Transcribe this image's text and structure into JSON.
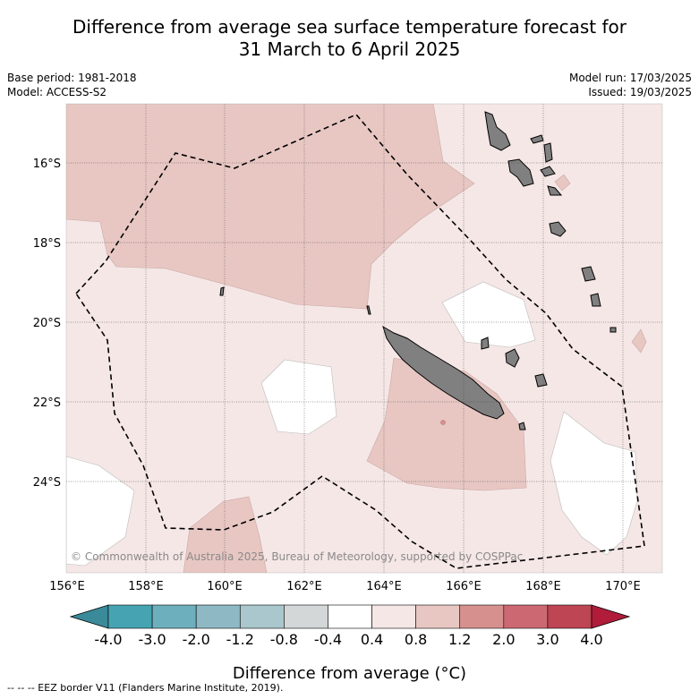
{
  "header": {
    "title_line1": "Difference from average sea surface temperature forecast for",
    "title_line2": "31 March to 6 April 2025",
    "base_period": "Base period: 1981-2018",
    "model": "Model: ACCESS-S2",
    "model_run": "Model run: 17/03/2025",
    "issued": "Issued: 19/03/2025"
  },
  "map": {
    "lat_labels": [
      "16°S",
      "18°S",
      "20°S",
      "22°S",
      "24°S"
    ],
    "lon_labels": [
      "156°E",
      "158°E",
      "160°E",
      "162°E",
      "164°E",
      "166°E",
      "168°E",
      "170°E"
    ],
    "copyright": "© Commonwealth of Australia 2025, Bureau of Meteorology, supported by COSPPac",
    "colors": {
      "ocean_light": "#f5e7e6",
      "ocean_medium": "#e8c7c3",
      "neutral": "#ffffff",
      "land": "#808080",
      "eez_border": "#000000"
    }
  },
  "colorbar": {
    "tick_labels": [
      "-4.0",
      "-3.0",
      "-2.0",
      "-1.2",
      "-0.8",
      "-0.4",
      "0.4",
      "0.8",
      "1.2",
      "2.0",
      "3.0",
      "4.0"
    ],
    "colors": [
      "#3a8a9a",
      "#46a4b2",
      "#6eafbd",
      "#8eb9c4",
      "#a9c7cc",
      "#d3d7d8",
      "#ffffff",
      "#f5e7e6",
      "#e8c7c3",
      "#d6918f",
      "#cc6872",
      "#bd4554",
      "#b01c3a"
    ],
    "label": "Difference from average (°C)"
  },
  "footer": {
    "legend": "--  --  -- EEZ border V11 (Flanders Marine Institute, 2019)."
  }
}
